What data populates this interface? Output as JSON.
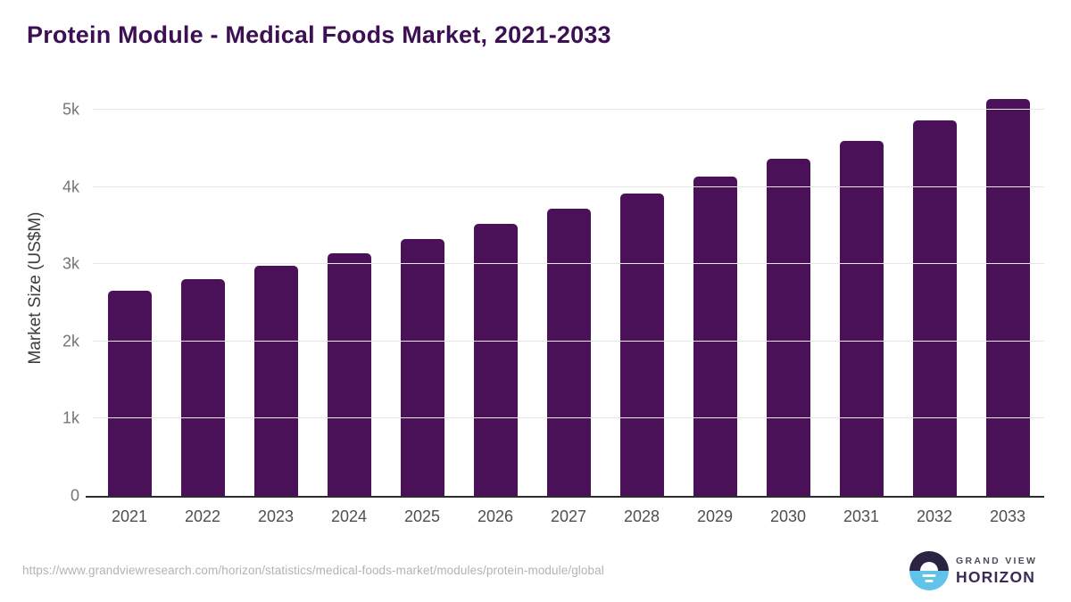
{
  "page": {
    "title": "Protein Module - Medical Foods Market, 2021-2033"
  },
  "source": {
    "url": "https://www.grandviewresearch.com/horizon/statistics/medical-foods-market/modules/protein-module/global"
  },
  "logo": {
    "line1": "GRAND VIEW",
    "line2": "HORIZON"
  },
  "colors": {
    "bar": "#4a1159",
    "title": "#3c1053",
    "axis_line": "#2d2d2d",
    "gridline": "#e7e7e7",
    "y_tick_label": "#767676",
    "x_tick_label": "#4f4f4f",
    "source_text": "#b3b3b3",
    "logo_navy": "#2b2342",
    "logo_blue": "#62c3ea"
  },
  "chart_data": {
    "type": "bar",
    "title": "Protein Module - Medical Foods Market, 2021-2033",
    "categories": [
      "2021",
      "2022",
      "2023",
      "2024",
      "2025",
      "2026",
      "2027",
      "2028",
      "2029",
      "2030",
      "2031",
      "2032",
      "2033"
    ],
    "values": [
      2655,
      2810,
      2985,
      3145,
      3325,
      3525,
      3715,
      3920,
      4135,
      4365,
      4600,
      4860,
      5140
    ],
    "xlabel": "",
    "ylabel": "Market Size (US$M)",
    "ylim": [
      0,
      5000
    ],
    "yticks": [
      0,
      1000,
      2000,
      3000,
      4000,
      5000
    ],
    "ytick_labels": [
      "0",
      "1k",
      "2k",
      "3k",
      "4k",
      "5k"
    ],
    "grid": "horizontal",
    "legend": "none",
    "bar_color": "#4a1159"
  }
}
